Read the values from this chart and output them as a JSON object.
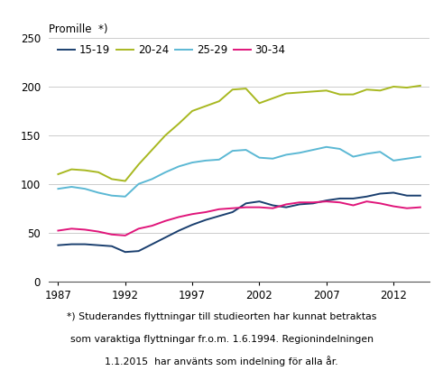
{
  "years": [
    1987,
    1988,
    1989,
    1990,
    1991,
    1992,
    1993,
    1994,
    1995,
    1996,
    1997,
    1998,
    1999,
    2000,
    2001,
    2002,
    2003,
    2004,
    2005,
    2006,
    2007,
    2008,
    2009,
    2010,
    2011,
    2012,
    2013,
    2014
  ],
  "series_order": [
    "15-19",
    "20-24",
    "25-29",
    "30-34"
  ],
  "series": {
    "15-19": [
      37,
      38,
      38,
      37,
      36,
      30,
      31,
      38,
      45,
      52,
      58,
      63,
      67,
      71,
      80,
      82,
      78,
      76,
      79,
      80,
      83,
      85,
      85,
      87,
      90,
      91,
      88,
      88
    ],
    "20-24": [
      110,
      115,
      114,
      112,
      105,
      103,
      120,
      135,
      150,
      162,
      175,
      180,
      185,
      197,
      198,
      183,
      188,
      193,
      194,
      195,
      196,
      192,
      192,
      197,
      196,
      200,
      199,
      201
    ],
    "25-29": [
      95,
      97,
      95,
      91,
      88,
      87,
      100,
      105,
      112,
      118,
      122,
      124,
      125,
      134,
      135,
      127,
      126,
      130,
      132,
      135,
      138,
      136,
      128,
      131,
      133,
      124,
      126,
      128
    ],
    "30-34": [
      52,
      54,
      53,
      51,
      48,
      47,
      54,
      57,
      62,
      66,
      69,
      71,
      74,
      75,
      76,
      76,
      75,
      79,
      81,
      81,
      82,
      81,
      78,
      82,
      80,
      77,
      75,
      76
    ]
  },
  "colors": {
    "15-19": "#1a3f6f",
    "20-24": "#a8b820",
    "25-29": "#5bb8d4",
    "30-34": "#e0157a"
  },
  "ylim": [
    0,
    250
  ],
  "yticks": [
    0,
    50,
    100,
    150,
    200,
    250
  ],
  "xticks": [
    1987,
    1992,
    1997,
    2002,
    2007,
    2012
  ],
  "xlim_left": 1986.3,
  "xlim_right": 2014.7,
  "ylabel": "Promille  *)",
  "footnote_line1": "*) Studerandes flyttningar till studieorten har kunnat betraktas",
  "footnote_line2": "som varaktiga flyttningar fr.o.m. 1.6.1994. Regionindelningen",
  "footnote_line3": "1.1.2015  har använts som indelning för alla år.",
  "grid_color": "#cccccc",
  "spine_color": "#555555",
  "tick_label_size": 8.5,
  "legend_fontsize": 8.5,
  "ylabel_fontsize": 8.5,
  "footnote_fontsize": 7.8,
  "linewidth": 1.4
}
